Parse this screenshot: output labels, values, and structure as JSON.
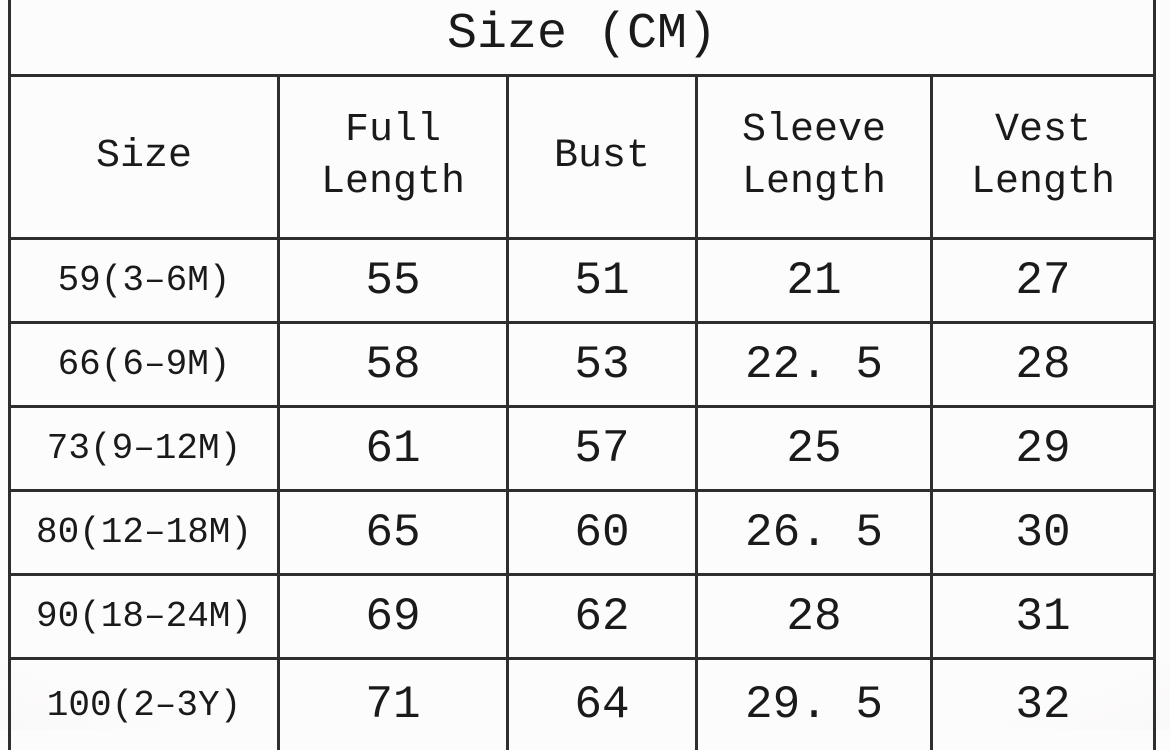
{
  "title": "Size (CM)",
  "table": {
    "columns": [
      {
        "label": "Size",
        "lines": [
          "Size"
        ]
      },
      {
        "label": "Full Length",
        "lines": [
          "Full",
          "Length"
        ]
      },
      {
        "label": "Bust",
        "lines": [
          "Bust"
        ]
      },
      {
        "label": "Sleeve Length",
        "lines": [
          "Sleeve",
          "Length"
        ]
      },
      {
        "label": "Vest Length",
        "lines": [
          "Vest",
          "Length"
        ]
      }
    ],
    "rows": [
      [
        "59(3–6M)",
        "55",
        "51",
        "21",
        "27"
      ],
      [
        "66(6–9M)",
        "58",
        "53",
        "22. 5",
        "28"
      ],
      [
        "73(9–12M)",
        "61",
        "57",
        "25",
        "29"
      ],
      [
        "80(12–18M)",
        "65",
        "60",
        "26. 5",
        "30"
      ],
      [
        "90(18–24M)",
        "69",
        "62",
        "28",
        "31"
      ],
      [
        "100(2–3Y)",
        "71",
        "64",
        "29. 5",
        "32"
      ]
    ]
  },
  "chart_data": {
    "type": "table",
    "title": "Size (CM)",
    "unit": "cm",
    "columns": [
      "Size",
      "Full Length",
      "Bust",
      "Sleeve Length",
      "Vest Length"
    ],
    "rows": [
      {
        "size": "59(3-6M)",
        "full_length": 55,
        "bust": 51,
        "sleeve_length": 21,
        "vest_length": 27
      },
      {
        "size": "66(6-9M)",
        "full_length": 58,
        "bust": 53,
        "sleeve_length": 22.5,
        "vest_length": 28
      },
      {
        "size": "73(9-12M)",
        "full_length": 61,
        "bust": 57,
        "sleeve_length": 25,
        "vest_length": 29
      },
      {
        "size": "80(12-18M)",
        "full_length": 65,
        "bust": 60,
        "sleeve_length": 26.5,
        "vest_length": 30
      },
      {
        "size": "90(18-24M)",
        "full_length": 69,
        "bust": 62,
        "sleeve_length": 28,
        "vest_length": 31
      },
      {
        "size": "100(2-3Y)",
        "full_length": 71,
        "bust": 64,
        "sleeve_length": 29.5,
        "vest_length": 32
      }
    ]
  },
  "colors": {
    "border": "#2e2e2e",
    "text": "#1a1a1a",
    "background": "#fcfbfb"
  }
}
